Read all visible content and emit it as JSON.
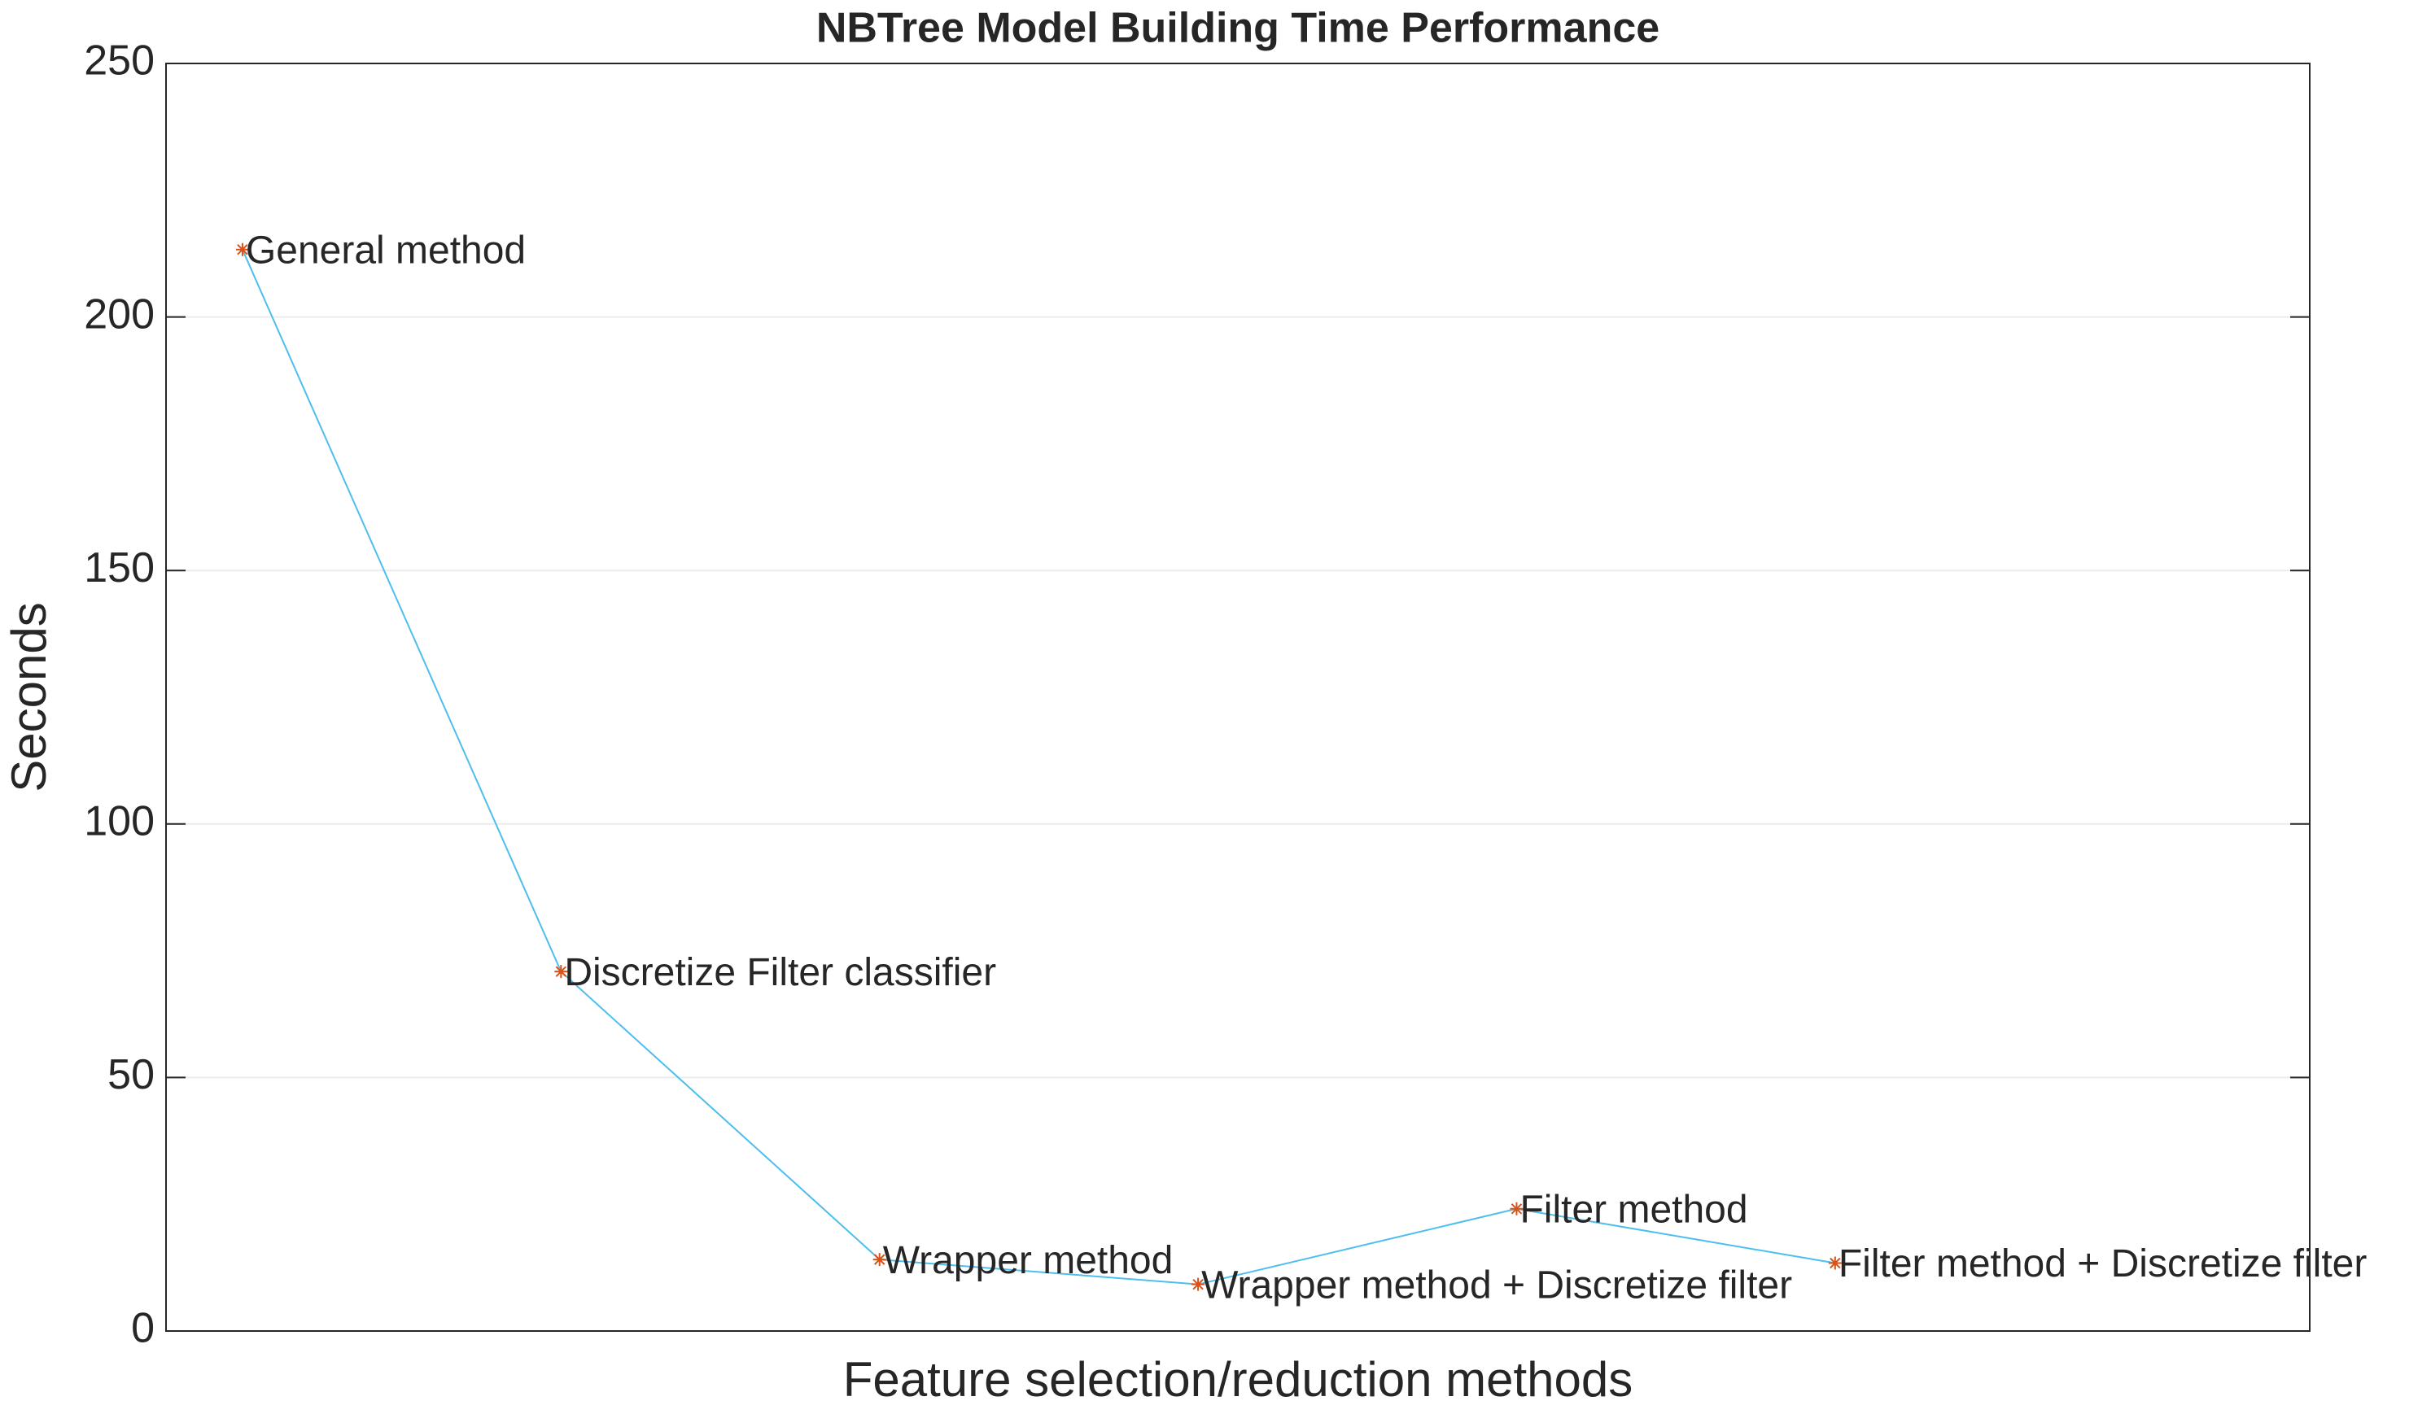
{
  "chart_data": {
    "type": "line",
    "title": "NBTree Model Building Time Performance",
    "x_label": "Feature selection/reduction methods",
    "y_label": "Seconds",
    "x": [
      1,
      2,
      3,
      4,
      5,
      6
    ],
    "values": [
      213.3,
      70.9,
      14.1,
      9.2,
      24.1,
      13.4
    ],
    "point_labels": [
      "General method",
      "Discretize Filter classifier",
      "Wrapper method",
      "Wrapper method + Discretize filter",
      "Filter method",
      "Filter method + Discretize filter"
    ],
    "line_color": "#4dbeee",
    "marker_color": "#d95319",
    "xlim": [
      0.76,
      7.49
    ],
    "ylim": [
      0,
      250
    ],
    "yticks": [
      0,
      50,
      100,
      150,
      200,
      250
    ],
    "grid": true
  }
}
